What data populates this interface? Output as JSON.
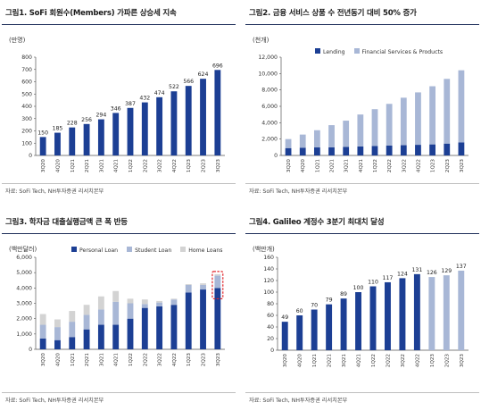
{
  "colors": {
    "navy": "#1c3f94",
    "light": "#a8b7d6",
    "grey": "#d3d3d3",
    "red": "#e0262c",
    "axis": "#555555"
  },
  "quarters": [
    "3Q20",
    "4Q20",
    "1Q21",
    "2Q21",
    "3Q21",
    "4Q21",
    "1Q22",
    "2Q22",
    "3Q22",
    "4Q22",
    "1Q23",
    "2Q23",
    "3Q23"
  ],
  "chart_data": [
    {
      "id": "fig1",
      "type": "bar",
      "title": "그림1. SoFi 회원수(Members) 가파른 상승세 지속",
      "unit": "(만명)",
      "source": "자료: SoFi Tech, NH투자증권 리서치본부",
      "ylim": [
        0,
        800
      ],
      "yticks": [
        0,
        100,
        200,
        300,
        400,
        500,
        600,
        700,
        800
      ],
      "values": [
        150,
        185,
        228,
        256,
        294,
        346,
        387,
        432,
        474,
        522,
        566,
        624,
        696
      ],
      "data_labels": true
    },
    {
      "id": "fig2",
      "type": "bar",
      "stacked": true,
      "title": "그림2. 금융 서비스 상품 수 전년동기 대비 50% 증가",
      "unit": "(천개)",
      "source": "자료: SoFi Tech, NH투자증권 리서치본부",
      "ylim": [
        0,
        12000
      ],
      "yticks": [
        0,
        2000,
        4000,
        6000,
        8000,
        10000,
        12000
      ],
      "legend": "top",
      "series": [
        {
          "name": "Lending",
          "values": [
            900,
            950,
            980,
            1000,
            1050,
            1100,
            1150,
            1200,
            1250,
            1300,
            1350,
            1450,
            1600
          ]
        },
        {
          "name": "Financial Services & Products",
          "values": [
            1100,
            1600,
            2100,
            2700,
            3200,
            3900,
            4500,
            5100,
            5800,
            6400,
            7100,
            7900,
            8800
          ]
        }
      ]
    },
    {
      "id": "fig3",
      "type": "bar",
      "stacked": true,
      "title": "그림3. 학자금 대출실행금액 큰 폭 반등",
      "unit": "(백만달러)",
      "source": "자료: SoFi Tech, NH투자증권 리서치본부",
      "ylim": [
        0,
        6000
      ],
      "yticks": [
        0,
        1000,
        2000,
        3000,
        4000,
        5000,
        6000
      ],
      "legend": "top",
      "series": [
        {
          "name": "Personal Loan",
          "values": [
            700,
            600,
            800,
            1300,
            1600,
            1600,
            2000,
            2700,
            2800,
            2900,
            3700,
            3900,
            4000
          ]
        },
        {
          "name": "Student Loan",
          "values": [
            900,
            850,
            1000,
            950,
            1000,
            1500,
            1000,
            250,
            250,
            350,
            500,
            300,
            800
          ]
        },
        {
          "name": "Home Loans",
          "values": [
            700,
            500,
            700,
            650,
            850,
            700,
            300,
            300,
            100,
            50,
            50,
            100,
            100
          ]
        }
      ],
      "highlight_index": 12
    },
    {
      "id": "fig4",
      "type": "bar",
      "title": "그림4. Galileo 계정수 3분기 최대치 달성",
      "unit": "(백만개)",
      "source": "자료: SoFi Tech, NH투자증권 리서치본부",
      "ylim": [
        0,
        160
      ],
      "yticks": [
        0,
        20,
        40,
        60,
        80,
        100,
        120,
        140,
        160
      ],
      "values": [
        49,
        60,
        70,
        79,
        89,
        100,
        110,
        117,
        124,
        131,
        126,
        129,
        137
      ],
      "data_labels": true,
      "light_from_index": 10
    }
  ]
}
